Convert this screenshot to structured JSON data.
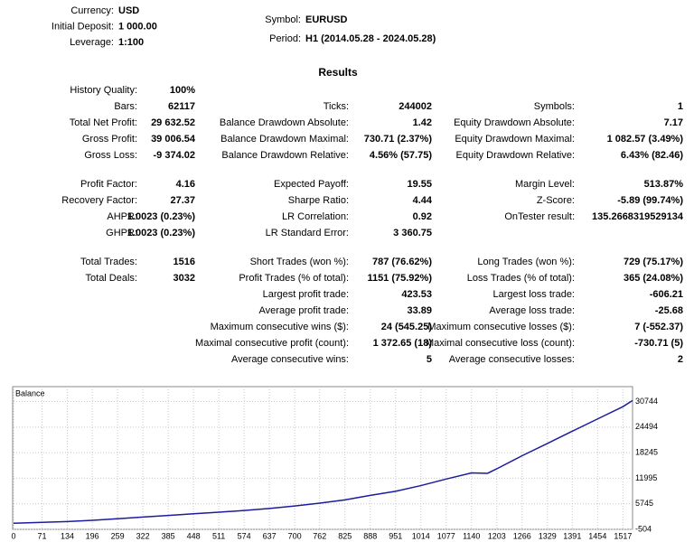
{
  "header": {
    "left": [
      {
        "label": "Currency:",
        "value": "USD"
      },
      {
        "label": "Initial Deposit:",
        "value": "1 000.00"
      },
      {
        "label": "Leverage:",
        "value": "1:100"
      }
    ],
    "right": [
      {
        "label": "Symbol:",
        "value": "EURUSD"
      },
      {
        "label": "Period:",
        "value": "H1 (2014.05.28 - 2024.05.28)"
      }
    ]
  },
  "results": {
    "title": "Results",
    "rows": [
      [
        {
          "label": "History Quality:",
          "value": "100%"
        },
        null,
        null
      ],
      [
        {
          "label": "Bars:",
          "value": "62117"
        },
        {
          "label": "Ticks:",
          "value": "244002"
        },
        {
          "label": "Symbols:",
          "value": "1"
        }
      ],
      [
        {
          "label": "Total Net Profit:",
          "value": "29 632.52"
        },
        {
          "label": "Balance Drawdown Absolute:",
          "value": "1.42"
        },
        {
          "label": "Equity Drawdown Absolute:",
          "value": "7.17"
        }
      ],
      [
        {
          "label": "Gross Profit:",
          "value": "39 006.54"
        },
        {
          "label": "Balance Drawdown Maximal:",
          "value": "730.71 (2.37%)"
        },
        {
          "label": "Equity Drawdown Maximal:",
          "value": "1 082.57 (3.49%)"
        }
      ],
      [
        {
          "label": "Gross Loss:",
          "value": "-9 374.02"
        },
        {
          "label": "Balance Drawdown Relative:",
          "value": "4.56% (57.75)"
        },
        {
          "label": "Equity Drawdown Relative:",
          "value": "6.43% (82.46)"
        }
      ],
      [
        {
          "label": "Profit Factor:",
          "value": "4.16"
        },
        {
          "label": "Expected Payoff:",
          "value": "19.55"
        },
        {
          "label": "Margin Level:",
          "value": "513.87%"
        }
      ],
      [
        {
          "label": "Recovery Factor:",
          "value": "27.37"
        },
        {
          "label": "Sharpe Ratio:",
          "value": "4.44"
        },
        {
          "label": "Z-Score:",
          "value": "-5.89 (99.74%)"
        }
      ],
      [
        {
          "label": "AHPR:",
          "value": "1.0023 (0.23%)"
        },
        {
          "label": "LR Correlation:",
          "value": "0.92"
        },
        {
          "label": "OnTester result:",
          "value": "135.2668319529134"
        }
      ],
      [
        {
          "label": "GHPR:",
          "value": "1.0023 (0.23%)"
        },
        {
          "label": "LR Standard Error:",
          "value": "3 360.75"
        },
        null
      ],
      [
        {
          "label": "Total Trades:",
          "value": "1516"
        },
        {
          "label": "Short Trades (won %):",
          "value": "787 (76.62%)"
        },
        {
          "label": "Long Trades (won %):",
          "value": "729 (75.17%)"
        }
      ],
      [
        {
          "label": "Total Deals:",
          "value": "3032"
        },
        {
          "label": "Profit Trades (% of total):",
          "value": "1151 (75.92%)"
        },
        {
          "label": "Loss Trades (% of total):",
          "value": "365 (24.08%)"
        }
      ],
      [
        null,
        {
          "label": "Largest profit trade:",
          "value": "423.53"
        },
        {
          "label": "Largest loss trade:",
          "value": "-606.21"
        }
      ],
      [
        null,
        {
          "label": "Average profit trade:",
          "value": "33.89"
        },
        {
          "label": "Average loss trade:",
          "value": "-25.68"
        }
      ],
      [
        null,
        {
          "label": "Maximum consecutive wins ($):",
          "value": "24 (545.25)"
        },
        {
          "label": "Maximum consecutive losses ($):",
          "value": "7 (-552.37)"
        }
      ],
      [
        null,
        {
          "label": "Maximal consecutive profit (count):",
          "value": "1 372.65 (18)"
        },
        {
          "label": "Maximal consecutive loss (count):",
          "value": "-730.71 (5)"
        }
      ],
      [
        null,
        {
          "label": "Average consecutive wins:",
          "value": "5"
        },
        {
          "label": "Average consecutive losses:",
          "value": "2"
        }
      ]
    ]
  },
  "chart_data": {
    "type": "line",
    "title": "Balance",
    "color": "#1c1c9c",
    "grid": true,
    "x": [
      0,
      71,
      134,
      196,
      259,
      322,
      385,
      448,
      511,
      574,
      637,
      700,
      762,
      825,
      888,
      951,
      1014,
      1077,
      1140,
      1180,
      1203,
      1266,
      1329,
      1391,
      1454,
      1517,
      1541
    ],
    "values": [
      1000,
      1200,
      1400,
      1700,
      2100,
      2500,
      2900,
      3300,
      3700,
      4100,
      4600,
      5200,
      5900,
      6700,
      7800,
      8800,
      10200,
      11800,
      13300,
      13200,
      14300,
      17500,
      20500,
      23500,
      26500,
      29500,
      31000
    ],
    "xlim": [
      0,
      1541
    ],
    "ylim": [
      -504,
      34400
    ],
    "xticks": [
      0,
      71,
      134,
      196,
      259,
      322,
      385,
      448,
      511,
      574,
      637,
      700,
      762,
      825,
      888,
      951,
      1014,
      1077,
      1140,
      1203,
      1266,
      1329,
      1391,
      1454,
      1517
    ],
    "yticks": [
      -504,
      5745,
      11995,
      18245,
      24494,
      30744
    ]
  }
}
